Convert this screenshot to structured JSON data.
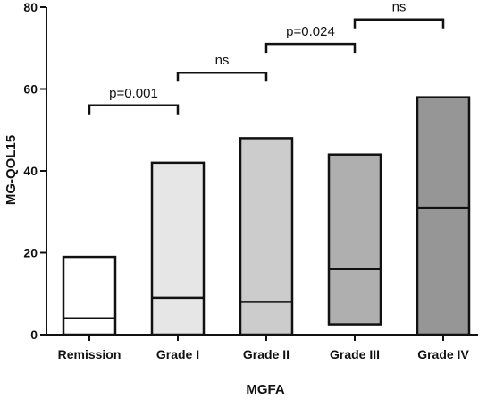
{
  "chart_data": {
    "type": "box",
    "title": "",
    "xlabel": "MGFA",
    "ylabel": "MG-QOL15",
    "ylim": [
      0,
      80
    ],
    "yticks": [
      "0",
      "20",
      "40",
      "60",
      "80"
    ],
    "grid": false,
    "categories": [
      "Remission",
      "Grade I",
      "Grade II",
      "Grade III",
      "Grade IV"
    ],
    "boxes": [
      {
        "category": "Remission",
        "min": 0,
        "median": 4,
        "max": 19,
        "fill": "#ffffff"
      },
      {
        "category": "Grade I",
        "min": 0,
        "median": 9,
        "max": 42,
        "fill": "#e6e6e6"
      },
      {
        "category": "Grade II",
        "min": 0,
        "median": 8,
        "max": 48,
        "fill": "#cccccc"
      },
      {
        "category": "Grade III",
        "min": 2.5,
        "median": 16,
        "max": 44,
        "fill": "#afafaf"
      },
      {
        "category": "Grade IV",
        "min": 0,
        "median": 31,
        "max": 58,
        "fill": "#969696"
      }
    ],
    "comparisons": [
      {
        "from": "Remission",
        "to": "Grade I",
        "label": "p=0.001",
        "y": 56
      },
      {
        "from": "Grade I",
        "to": "Grade II",
        "label": "ns",
        "y": 64
      },
      {
        "from": "Grade II",
        "to": "Grade III",
        "label": "p=0.024",
        "y": 71
      },
      {
        "from": "Grade III",
        "to": "Grade IV",
        "label": "ns",
        "y": 77
      }
    ]
  }
}
